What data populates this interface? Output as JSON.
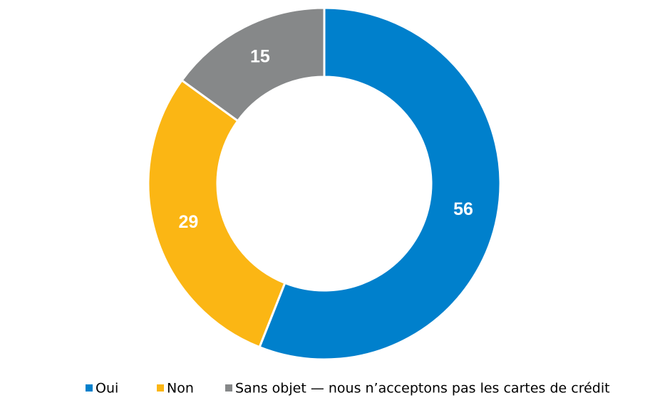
{
  "chart_data": {
    "type": "donut",
    "categories": [
      "Oui",
      "Non",
      "Sans objet — nous n’acceptons pas les cartes de crédit"
    ],
    "values": [
      56,
      29,
      15
    ],
    "colors": [
      "#0080cc",
      "#fbb614",
      "#868889"
    ],
    "legend": "bottom"
  }
}
